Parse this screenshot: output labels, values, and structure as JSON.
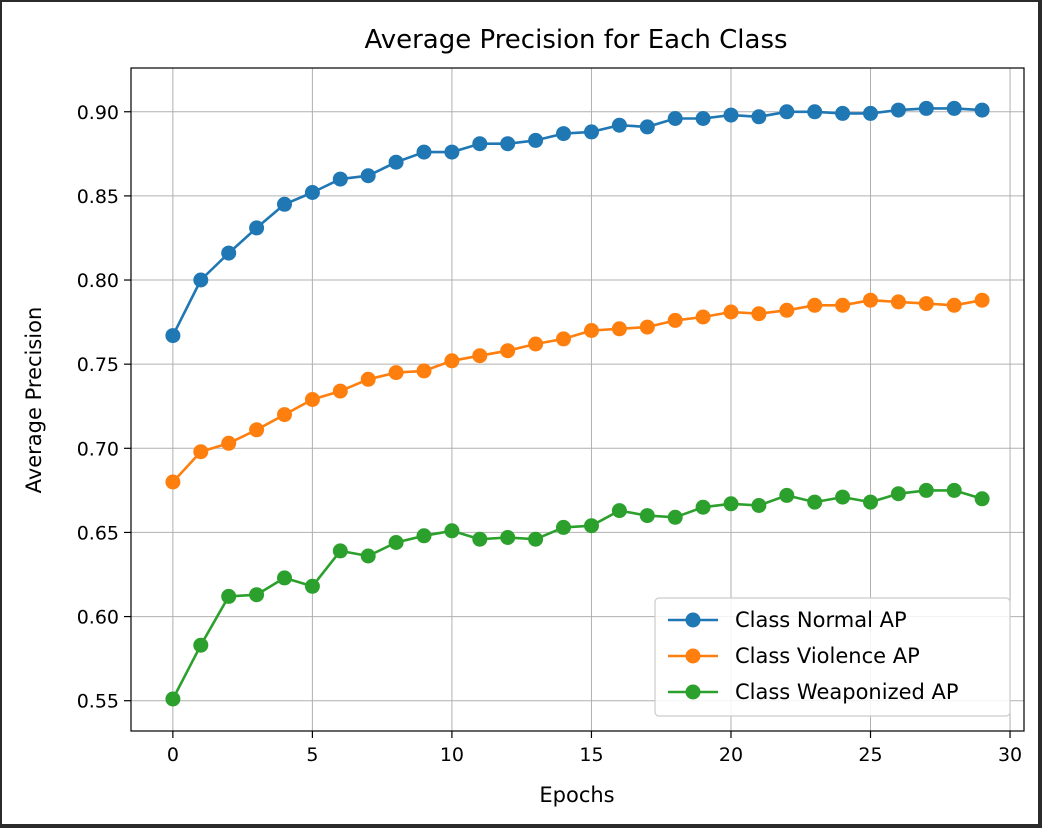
{
  "chart_data": {
    "type": "line",
    "title": "Average Precision for Each Class",
    "xlabel": "Epochs",
    "ylabel": "Average Precision",
    "xlim": [
      -1.5,
      30.5
    ],
    "ylim": [
      0.532,
      0.926
    ],
    "xticks": [
      0,
      5,
      10,
      15,
      20,
      25,
      30
    ],
    "yticks": [
      0.55,
      0.6,
      0.65,
      0.7,
      0.75,
      0.8,
      0.85,
      0.9
    ],
    "ytick_labels": [
      "0.55",
      "0.60",
      "0.65",
      "0.70",
      "0.75",
      "0.80",
      "0.85",
      "0.90"
    ],
    "grid": true,
    "legend_position": "lower-right",
    "x": [
      0,
      1,
      2,
      3,
      4,
      5,
      6,
      7,
      8,
      9,
      10,
      11,
      12,
      13,
      14,
      15,
      16,
      17,
      18,
      19,
      20,
      21,
      22,
      23,
      24,
      25,
      26,
      27,
      28,
      29
    ],
    "series": [
      {
        "name": "Class Normal AP",
        "color": "#1f77b4",
        "values": [
          0.767,
          0.8,
          0.816,
          0.831,
          0.845,
          0.852,
          0.86,
          0.862,
          0.87,
          0.876,
          0.876,
          0.881,
          0.881,
          0.883,
          0.887,
          0.888,
          0.892,
          0.891,
          0.896,
          0.896,
          0.898,
          0.897,
          0.9,
          0.9,
          0.899,
          0.899,
          0.901,
          0.902,
          0.902,
          0.901
        ]
      },
      {
        "name": "Class Violence AP",
        "color": "#ff7f0e",
        "values": [
          0.68,
          0.698,
          0.703,
          0.711,
          0.72,
          0.729,
          0.734,
          0.741,
          0.745,
          0.746,
          0.752,
          0.755,
          0.758,
          0.762,
          0.765,
          0.77,
          0.771,
          0.772,
          0.776,
          0.778,
          0.781,
          0.78,
          0.782,
          0.785,
          0.785,
          0.788,
          0.787,
          0.786,
          0.785,
          0.788
        ]
      },
      {
        "name": "Class Weaponized AP",
        "color": "#2ca02c",
        "values": [
          0.551,
          0.583,
          0.612,
          0.613,
          0.623,
          0.618,
          0.639,
          0.636,
          0.644,
          0.648,
          0.651,
          0.646,
          0.647,
          0.646,
          0.653,
          0.654,
          0.663,
          0.66,
          0.659,
          0.665,
          0.667,
          0.666,
          0.672,
          0.668,
          0.671,
          0.668,
          0.673,
          0.675,
          0.675,
          0.67
        ]
      }
    ]
  }
}
